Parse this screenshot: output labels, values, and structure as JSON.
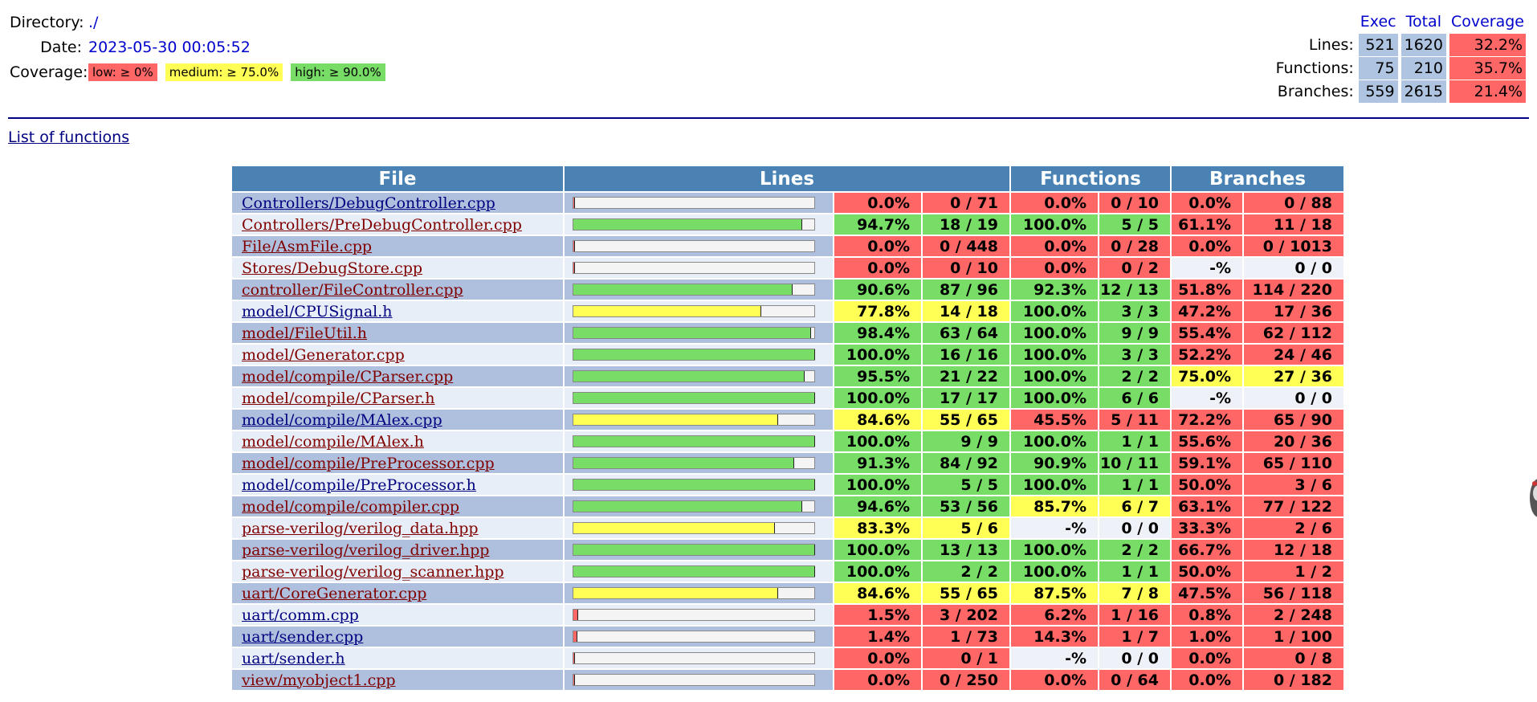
{
  "header": {
    "directory_label": "Directory:",
    "directory_value": "./",
    "date_label": "Date:",
    "date_value": "2023-05-30 00:05:52",
    "coverage_label": "Coverage:",
    "legend": {
      "low": "low: ≥ 0%",
      "medium": "medium: ≥ 75.0%",
      "high": "high: ≥ 90.0%"
    }
  },
  "summary": {
    "columns": [
      "Exec",
      "Total",
      "Coverage"
    ],
    "rows": [
      {
        "label": "Lines:",
        "exec": "521",
        "total": "1620",
        "coverage": "32.2%"
      },
      {
        "label": "Functions:",
        "exec": "75",
        "total": "210",
        "coverage": "35.7%"
      },
      {
        "label": "Branches:",
        "exec": "559",
        "total": "2615",
        "coverage": "21.4%"
      }
    ]
  },
  "list_of_functions_link": "List of functions",
  "table": {
    "headers": {
      "file": "File",
      "lines": "Lines",
      "functions": "Functions",
      "branches": "Branches"
    },
    "rows": [
      {
        "file": "Controllers/DebugController.cpp",
        "link_color": "blue",
        "line_fraction": 0.0,
        "line_pct": "0.0%",
        "line_count": "0 / 71",
        "line_level": "lo",
        "func_pct": "0.0%",
        "func_count": "0 / 10",
        "func_level": "lo",
        "br_pct": "0.0%",
        "br_count": "0 / 88",
        "br_level": "lo"
      },
      {
        "file": "Controllers/PreDebugController.cpp",
        "link_color": "red",
        "line_fraction": 0.947,
        "line_pct": "94.7%",
        "line_count": "18 / 19",
        "line_level": "hi",
        "func_pct": "100.0%",
        "func_count": "5 / 5",
        "func_level": "hi",
        "br_pct": "61.1%",
        "br_count": "11 / 18",
        "br_level": "lo"
      },
      {
        "file": "File/AsmFile.cpp",
        "link_color": "red",
        "line_fraction": 0.0,
        "line_pct": "0.0%",
        "line_count": "0 / 448",
        "line_level": "lo",
        "func_pct": "0.0%",
        "func_count": "0 / 28",
        "func_level": "lo",
        "br_pct": "0.0%",
        "br_count": "0 / 1013",
        "br_level": "lo"
      },
      {
        "file": "Stores/DebugStore.cpp",
        "link_color": "red",
        "line_fraction": 0.0,
        "line_pct": "0.0%",
        "line_count": "0 / 10",
        "line_level": "lo",
        "func_pct": "0.0%",
        "func_count": "0 / 2",
        "func_level": "lo",
        "br_pct": "-%",
        "br_count": "0 / 0",
        "br_level": "none"
      },
      {
        "file": "controller/FileController.cpp",
        "link_color": "red",
        "line_fraction": 0.906,
        "line_pct": "90.6%",
        "line_count": "87 / 96",
        "line_level": "hi",
        "func_pct": "92.3%",
        "func_count": "12 / 13",
        "func_level": "hi",
        "br_pct": "51.8%",
        "br_count": "114 / 220",
        "br_level": "lo"
      },
      {
        "file": "model/CPUSignal.h",
        "link_color": "blue",
        "line_fraction": 0.778,
        "line_pct": "77.8%",
        "line_count": "14 / 18",
        "line_level": "med",
        "func_pct": "100.0%",
        "func_count": "3 / 3",
        "func_level": "hi",
        "br_pct": "47.2%",
        "br_count": "17 / 36",
        "br_level": "lo"
      },
      {
        "file": "model/FileUtil.h",
        "link_color": "red",
        "line_fraction": 0.984,
        "line_pct": "98.4%",
        "line_count": "63 / 64",
        "line_level": "hi",
        "func_pct": "100.0%",
        "func_count": "9 / 9",
        "func_level": "hi",
        "br_pct": "55.4%",
        "br_count": "62 / 112",
        "br_level": "lo"
      },
      {
        "file": "model/Generator.cpp",
        "link_color": "red",
        "line_fraction": 1.0,
        "line_pct": "100.0%",
        "line_count": "16 / 16",
        "line_level": "hi",
        "func_pct": "100.0%",
        "func_count": "3 / 3",
        "func_level": "hi",
        "br_pct": "52.2%",
        "br_count": "24 / 46",
        "br_level": "lo"
      },
      {
        "file": "model/compile/CParser.cpp",
        "link_color": "red",
        "line_fraction": 0.955,
        "line_pct": "95.5%",
        "line_count": "21 / 22",
        "line_level": "hi",
        "func_pct": "100.0%",
        "func_count": "2 / 2",
        "func_level": "hi",
        "br_pct": "75.0%",
        "br_count": "27 / 36",
        "br_level": "med"
      },
      {
        "file": "model/compile/CParser.h",
        "link_color": "red",
        "line_fraction": 1.0,
        "line_pct": "100.0%",
        "line_count": "17 / 17",
        "line_level": "hi",
        "func_pct": "100.0%",
        "func_count": "6 / 6",
        "func_level": "hi",
        "br_pct": "-%",
        "br_count": "0 / 0",
        "br_level": "none"
      },
      {
        "file": "model/compile/MAlex.cpp",
        "link_color": "blue",
        "line_fraction": 0.846,
        "line_pct": "84.6%",
        "line_count": "55 / 65",
        "line_level": "med",
        "func_pct": "45.5%",
        "func_count": "5 / 11",
        "func_level": "lo",
        "br_pct": "72.2%",
        "br_count": "65 / 90",
        "br_level": "lo"
      },
      {
        "file": "model/compile/MAlex.h",
        "link_color": "red",
        "line_fraction": 1.0,
        "line_pct": "100.0%",
        "line_count": "9 / 9",
        "line_level": "hi",
        "func_pct": "100.0%",
        "func_count": "1 / 1",
        "func_level": "hi",
        "br_pct": "55.6%",
        "br_count": "20 / 36",
        "br_level": "lo"
      },
      {
        "file": "model/compile/PreProcessor.cpp",
        "link_color": "red",
        "line_fraction": 0.913,
        "line_pct": "91.3%",
        "line_count": "84 / 92",
        "line_level": "hi",
        "func_pct": "90.9%",
        "func_count": "10 / 11",
        "func_level": "hi",
        "br_pct": "59.1%",
        "br_count": "65 / 110",
        "br_level": "lo"
      },
      {
        "file": "model/compile/PreProcessor.h",
        "link_color": "blue",
        "line_fraction": 1.0,
        "line_pct": "100.0%",
        "line_count": "5 / 5",
        "line_level": "hi",
        "func_pct": "100.0%",
        "func_count": "1 / 1",
        "func_level": "hi",
        "br_pct": "50.0%",
        "br_count": "3 / 6",
        "br_level": "lo"
      },
      {
        "file": "model/compile/compiler.cpp",
        "link_color": "red",
        "line_fraction": 0.946,
        "line_pct": "94.6%",
        "line_count": "53 / 56",
        "line_level": "hi",
        "func_pct": "85.7%",
        "func_count": "6 / 7",
        "func_level": "med",
        "br_pct": "63.1%",
        "br_count": "77 / 122",
        "br_level": "lo"
      },
      {
        "file": "parse-verilog/verilog_data.hpp",
        "link_color": "red",
        "line_fraction": 0.833,
        "line_pct": "83.3%",
        "line_count": "5 / 6",
        "line_level": "med",
        "func_pct": "-%",
        "func_count": "0 / 0",
        "func_level": "none",
        "br_pct": "33.3%",
        "br_count": "2 / 6",
        "br_level": "lo"
      },
      {
        "file": "parse-verilog/verilog_driver.hpp",
        "link_color": "red",
        "line_fraction": 1.0,
        "line_pct": "100.0%",
        "line_count": "13 / 13",
        "line_level": "hi",
        "func_pct": "100.0%",
        "func_count": "2 / 2",
        "func_level": "hi",
        "br_pct": "66.7%",
        "br_count": "12 / 18",
        "br_level": "lo"
      },
      {
        "file": "parse-verilog/verilog_scanner.hpp",
        "link_color": "red",
        "line_fraction": 1.0,
        "line_pct": "100.0%",
        "line_count": "2 / 2",
        "line_level": "hi",
        "func_pct": "100.0%",
        "func_count": "1 / 1",
        "func_level": "hi",
        "br_pct": "50.0%",
        "br_count": "1 / 2",
        "br_level": "lo"
      },
      {
        "file": "uart/CoreGenerator.cpp",
        "link_color": "red",
        "line_fraction": 0.846,
        "line_pct": "84.6%",
        "line_count": "55 / 65",
        "line_level": "med",
        "func_pct": "87.5%",
        "func_count": "7 / 8",
        "func_level": "med",
        "br_pct": "47.5%",
        "br_count": "56 / 118",
        "br_level": "lo"
      },
      {
        "file": "uart/comm.cpp",
        "link_color": "blue",
        "line_fraction": 0.015,
        "line_pct": "1.5%",
        "line_count": "3 / 202",
        "line_level": "lo",
        "func_pct": "6.2%",
        "func_count": "1 / 16",
        "func_level": "lo",
        "br_pct": "0.8%",
        "br_count": "2 / 248",
        "br_level": "lo"
      },
      {
        "file": "uart/sender.cpp",
        "link_color": "blue",
        "line_fraction": 0.014,
        "line_pct": "1.4%",
        "line_count": "1 / 73",
        "line_level": "lo",
        "func_pct": "14.3%",
        "func_count": "1 / 7",
        "func_level": "lo",
        "br_pct": "1.0%",
        "br_count": "1 / 100",
        "br_level": "lo"
      },
      {
        "file": "uart/sender.h",
        "link_color": "blue",
        "line_fraction": 0.0,
        "line_pct": "0.0%",
        "line_count": "0 / 1",
        "line_level": "lo",
        "func_pct": "-%",
        "func_count": "0 / 0",
        "func_level": "none",
        "br_pct": "0.0%",
        "br_count": "0 / 8",
        "br_level": "lo"
      },
      {
        "file": "view/myobject1.cpp",
        "link_color": "red",
        "line_fraction": 0.0,
        "line_pct": "0.0%",
        "line_count": "0 / 250",
        "line_level": "lo",
        "func_pct": "0.0%",
        "func_count": "0 / 64",
        "func_level": "lo",
        "br_pct": "0.0%",
        "br_count": "0 / 182",
        "br_level": "lo"
      }
    ]
  },
  "colors": {
    "low": "#ff6666",
    "medium": "#ffff55",
    "high": "#77dd66",
    "header": "#4a82b4"
  }
}
